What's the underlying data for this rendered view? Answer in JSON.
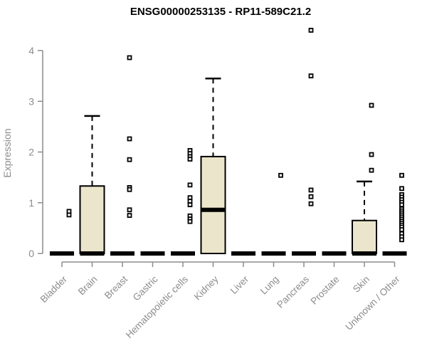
{
  "page": {
    "background": "#ffffff"
  },
  "chart_data": {
    "type": "boxplot",
    "title": "ENSG00000253135 - RP11-589C21.2",
    "ylabel": "Expression",
    "xlabel": "",
    "ylim": [
      0,
      4
    ],
    "yticks": [
      0,
      1,
      2,
      3,
      4
    ],
    "grid": false,
    "legend": "none",
    "colors": {
      "box_fill": "#EBE5CB",
      "box_stroke": "#000000",
      "median": "#000000",
      "whisker": "#000000",
      "outlier_stroke": "#000000",
      "outlier_fill": "#ffffff",
      "axis": "#8C8C8C",
      "tick_label": "#8C8C8C",
      "title": "#000000"
    },
    "categories": [
      "Bladder",
      "Brain",
      "Breast",
      "Gastric",
      "Hematopoietic cells",
      "Kidney",
      "Liver",
      "Lung",
      "Pancreas",
      "Prostate",
      "Skin",
      "Unknown / Other"
    ],
    "boxes": [
      {
        "category": "Bladder",
        "q1": 0,
        "median": 0,
        "q3": 0,
        "whisker_low": 0,
        "whisker_high": 0,
        "outliers": [
          0.83,
          0.76
        ]
      },
      {
        "category": "Brain",
        "q1": 0,
        "median": 0,
        "q3": 1.33,
        "whisker_low": 0,
        "whisker_high": 2.71,
        "outliers": []
      },
      {
        "category": "Breast",
        "q1": 0,
        "median": 0,
        "q3": 0,
        "whisker_low": 0,
        "whisker_high": 0,
        "outliers": [
          3.86,
          2.26,
          1.85,
          1.3,
          1.26,
          0.86,
          0.75
        ]
      },
      {
        "category": "Gastric",
        "q1": 0,
        "median": 0,
        "q3": 0,
        "whisker_low": 0,
        "whisker_high": 0,
        "outliers": []
      },
      {
        "category": "Hematopoietic cells",
        "q1": 0,
        "median": 0,
        "q3": 0,
        "whisker_low": 0,
        "whisker_high": 0,
        "outliers": [
          2.03,
          1.97,
          1.91,
          1.86,
          1.35,
          1.1,
          1.03,
          0.96,
          0.74,
          0.68,
          0.63
        ]
      },
      {
        "category": "Kidney",
        "q1": 0,
        "median": 0.86,
        "q3": 1.91,
        "whisker_low": 0,
        "whisker_high": 3.45,
        "outliers": []
      },
      {
        "category": "Liver",
        "q1": 0,
        "median": 0,
        "q3": 0,
        "whisker_low": 0,
        "whisker_high": 0,
        "outliers": []
      },
      {
        "category": "Lung",
        "q1": 0,
        "median": 0,
        "q3": 0,
        "whisker_low": 0,
        "whisker_high": 0,
        "outliers": [
          1.54
        ]
      },
      {
        "category": "Pancreas",
        "q1": 0,
        "median": 0,
        "q3": 0,
        "whisker_low": 0,
        "whisker_high": 0,
        "outliers": [
          4.4,
          3.5,
          1.25,
          1.12,
          0.98
        ]
      },
      {
        "category": "Prostate",
        "q1": 0,
        "median": 0,
        "q3": 0,
        "whisker_low": 0,
        "whisker_high": 0,
        "outliers": []
      },
      {
        "category": "Skin",
        "q1": 0,
        "median": 0,
        "q3": 0.65,
        "whisker_low": 0,
        "whisker_high": 1.42,
        "outliers": [
          2.92,
          1.95,
          1.64
        ]
      },
      {
        "category": "Unknown / Other",
        "q1": 0,
        "median": 0,
        "q3": 0,
        "whisker_low": 0,
        "whisker_high": 0,
        "outliers": [
          1.54,
          1.28,
          1.16,
          1.11,
          1.06,
          1.01,
          0.96,
          0.88,
          0.84,
          0.8,
          0.76,
          0.72,
          0.68,
          0.64,
          0.6,
          0.56,
          0.52,
          0.47,
          0.39,
          0.33,
          0.27
        ]
      }
    ]
  }
}
